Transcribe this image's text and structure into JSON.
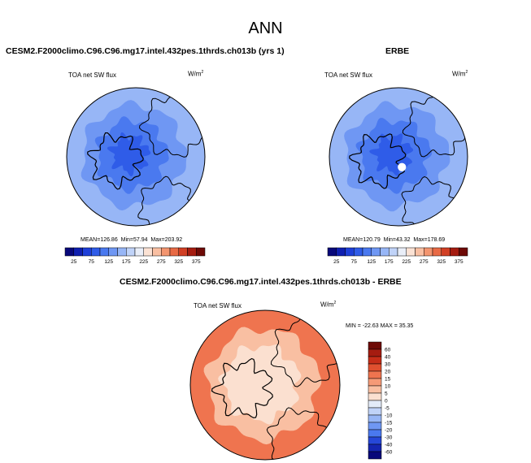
{
  "page": {
    "main_title": "ANN"
  },
  "panels": {
    "model": {
      "title": "CESM2.F2000climo.C96.C96.mg17.intel.432pes.1thrds.ch013b (yrs 1)",
      "variable": "TOA net SW flux",
      "units": "W/m",
      "units_exp": "2",
      "stats": {
        "mean_label": "MEAN=",
        "mean": "126.86",
        "min_label": "Min=",
        "min": "57.94",
        "max_label": "Max=",
        "max": "203.92"
      }
    },
    "obs": {
      "title": "ERBE",
      "variable": "TOA net SW flux",
      "units": "W/m",
      "units_exp": "2",
      "stats": {
        "mean_label": "MEAN=",
        "mean": "120.79",
        "min_label": "Min=",
        "min": "43.32",
        "max_label": "Max=",
        "max": "178.69"
      }
    },
    "diff": {
      "title": "CESM2.F2000climo.C96.C96.mg17.intel.432pes.1thrds.ch013b - ERBE",
      "variable": "TOA net SW flux",
      "units": "W/m",
      "units_exp": "2",
      "stats": {
        "min_label": "MIN =",
        "min": "-22.63",
        "max_label": "MAX =",
        "max": "35.35"
      }
    }
  },
  "chart_data": [
    {
      "type": "heatmap",
      "projection": "north polar stereographic",
      "title": "CESM2.F2000climo.C96.C96.mg17.intel.432pes.1thrds.ch013b (yrs 1)",
      "variable": "TOA net SW flux",
      "units": "W/m2",
      "mean": 126.86,
      "min": 57.94,
      "max": 203.92,
      "colorbar": {
        "orientation": "horizontal",
        "levels": [
          25,
          50,
          75,
          100,
          125,
          150,
          175,
          200,
          225,
          250,
          275,
          300,
          325,
          350,
          375
        ],
        "tick_labels": [
          "25",
          "75",
          "125",
          "175",
          "225",
          "275",
          "325",
          "375"
        ],
        "colors": [
          "#08087a",
          "#0f1fb0",
          "#1e3fd8",
          "#2f5ce8",
          "#4a79ef",
          "#6f97f3",
          "#97b6f6",
          "#c0d3f8",
          "#e9eef8",
          "#fbe2d4",
          "#f9bfa2",
          "#f3956f",
          "#e86a45",
          "#d13f24",
          "#a51c10",
          "#6e0a06"
        ]
      },
      "regions": [
        {
          "name": "outer ring",
          "value": 160
        },
        {
          "name": "mid ring",
          "value": 135
        },
        {
          "name": "inner ring",
          "value": 110
        },
        {
          "name": "pole",
          "value": 85
        }
      ]
    },
    {
      "type": "heatmap",
      "projection": "north polar stereographic",
      "title": "ERBE",
      "variable": "TOA net SW flux",
      "units": "W/m2",
      "mean": 120.79,
      "min": 43.32,
      "max": 178.69,
      "colorbar": {
        "orientation": "horizontal",
        "levels": [
          25,
          50,
          75,
          100,
          125,
          150,
          175,
          200,
          225,
          250,
          275,
          300,
          325,
          350,
          375
        ],
        "tick_labels": [
          "25",
          "75",
          "125",
          "175",
          "225",
          "275",
          "325",
          "375"
        ],
        "colors": [
          "#08087a",
          "#0f1fb0",
          "#1e3fd8",
          "#2f5ce8",
          "#4a79ef",
          "#6f97f3",
          "#97b6f6",
          "#c0d3f8",
          "#e9eef8",
          "#fbe2d4",
          "#f9bfa2",
          "#f3956f",
          "#e86a45",
          "#d13f24",
          "#a51c10",
          "#6e0a06"
        ]
      },
      "regions": [
        {
          "name": "outer ring",
          "value": 155
        },
        {
          "name": "mid ring",
          "value": 130
        },
        {
          "name": "inner ring",
          "value": 105
        },
        {
          "name": "pole",
          "value": 80
        }
      ],
      "missing_data": "pole"
    },
    {
      "type": "heatmap",
      "projection": "north polar stereographic",
      "title": "CESM2.F2000climo.C96.C96.mg17.intel.432pes.1thrds.ch013b - ERBE",
      "variable": "TOA net SW flux",
      "units": "W/m2",
      "min": -22.63,
      "max": 35.35,
      "colorbar": {
        "orientation": "vertical",
        "tick_labels": [
          "60",
          "40",
          "30",
          "20",
          "15",
          "10",
          "5",
          "0",
          "-5",
          "-10",
          "-15",
          "-20",
          "-30",
          "-40",
          "-60"
        ],
        "colors": [
          "#6e0a06",
          "#a51c10",
          "#c62d18",
          "#e0502f",
          "#ef744f",
          "#f59a77",
          "#f9bfa2",
          "#fbe0d0",
          "#e3ebf8",
          "#c0d3f8",
          "#97b6f6",
          "#6f97f3",
          "#4a79ef",
          "#2647d8",
          "#1525b0",
          "#08087a"
        ]
      },
      "regions": [
        {
          "name": "outer ring",
          "value": 15
        },
        {
          "name": "mid ring",
          "value": 8
        },
        {
          "name": "inner ring",
          "value": 3
        },
        {
          "name": "pole",
          "value": 0
        }
      ]
    }
  ]
}
